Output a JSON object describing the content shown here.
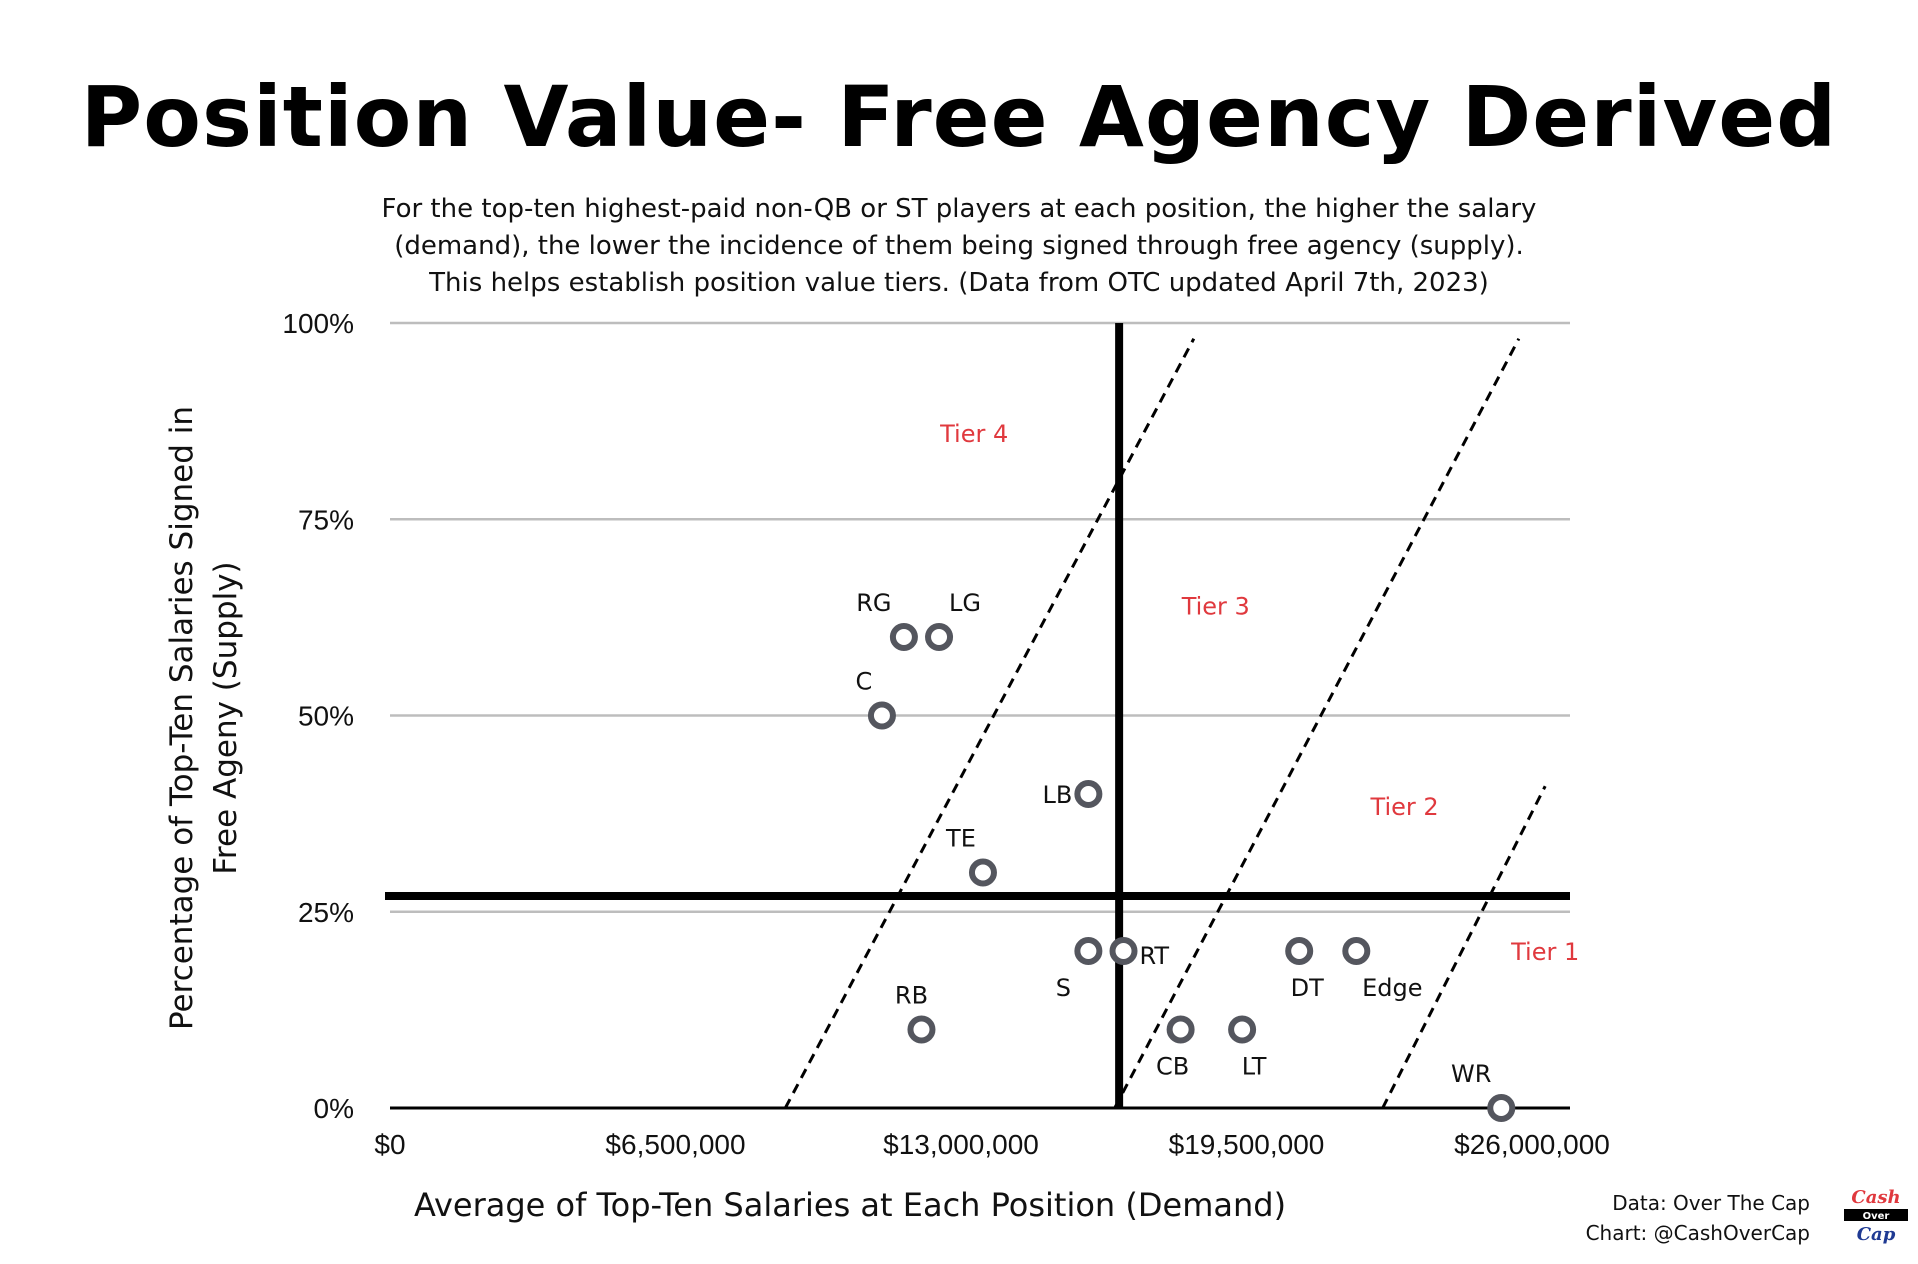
{
  "chart_data": {
    "type": "scatter",
    "title": "Position Value- Free Agency Derived",
    "subtitle_lines": [
      "For the top-ten highest-paid non-QB or ST players at each position, the higher the salary",
      "(demand), the lower the incidence of them being signed through free agency (supply).",
      "This helps establish position value tiers. (Data from OTC updated April 7th, 2023)"
    ],
    "xlabel": "Average of Top-Ten Salaries at Each Position (Demand)",
    "ylabel_lines": [
      "Percentage of Top-Ten  Salaries Signed in",
      "Free Ageny (Supply)"
    ],
    "xlim": [
      0,
      26000000
    ],
    "ylim": [
      0,
      100
    ],
    "x_ticks": [
      {
        "value": 0,
        "label": "$0"
      },
      {
        "value": 6500000,
        "label": "$6,500,000"
      },
      {
        "value": 13000000,
        "label": "$13,000,000"
      },
      {
        "value": 19500000,
        "label": "$19,500,000"
      },
      {
        "value": 26000000,
        "label": "$26,000,000"
      }
    ],
    "y_ticks": [
      {
        "value": 0,
        "label": "0%"
      },
      {
        "value": 25,
        "label": "25%"
      },
      {
        "value": 50,
        "label": "50%"
      },
      {
        "value": 75,
        "label": "75%"
      },
      {
        "value": 100,
        "label": "100%"
      }
    ],
    "grid": "horizontal",
    "points": [
      {
        "label": "RG",
        "x": 11700000,
        "y": 60,
        "label_pos": "top-left"
      },
      {
        "label": "LG",
        "x": 12500000,
        "y": 60,
        "label_pos": "top-right"
      },
      {
        "label": "C",
        "x": 11200000,
        "y": 50,
        "label_pos": "top-left"
      },
      {
        "label": "LB",
        "x": 15900000,
        "y": 40,
        "label_pos": "left"
      },
      {
        "label": "TE",
        "x": 13500000,
        "y": 30,
        "label_pos": "top-left"
      },
      {
        "label": "RB",
        "x": 12100000,
        "y": 10,
        "label_pos": "top-left"
      },
      {
        "label": "S",
        "x": 15900000,
        "y": 20,
        "label_pos": "bottom-left"
      },
      {
        "label": "RT",
        "x": 16700000,
        "y": 20,
        "label_pos": "right"
      },
      {
        "label": "CB",
        "x": 18000000,
        "y": 10,
        "label_pos": "bottom-left"
      },
      {
        "label": "LT",
        "x": 19400000,
        "y": 10,
        "label_pos": "bottom-right"
      },
      {
        "label": "DT",
        "x": 20700000,
        "y": 20,
        "label_pos": "bottom"
      },
      {
        "label": "Edge",
        "x": 22000000,
        "y": 20,
        "label_pos": "bottom-right"
      },
      {
        "label": "WR",
        "x": 25300000,
        "y": 0,
        "label_pos": "top-left"
      }
    ],
    "reference_lines": {
      "vertical_x": 16600000,
      "horizontal_y": 27
    },
    "tier_boundaries": [
      {
        "x1": 9000000,
        "y1": 0,
        "x2": 18300000,
        "y2": 98
      },
      {
        "x1": 16500000,
        "y1": 0,
        "x2": 25700000,
        "y2": 98
      },
      {
        "x1": 22600000,
        "y1": 0,
        "x2": 26300000,
        "y2": 41
      }
    ],
    "tier_labels": [
      {
        "text": "Tier 4",
        "x": 13300000,
        "y": 86
      },
      {
        "text": "Tier 3",
        "x": 18800000,
        "y": 64
      },
      {
        "text": "Tier 2",
        "x": 23100000,
        "y": 38.5
      },
      {
        "text": "Tier 1",
        "x": 26300000,
        "y": 20
      }
    ],
    "colors": {
      "marker": "#54565e",
      "tier_label": "#e0393e",
      "grid": "#bdbdbd",
      "axis": "#000000"
    }
  },
  "credits": {
    "data_line": "Data: Over The Cap",
    "chart_line": "Chart: @CashOverCap"
  },
  "logo": {
    "top": "Cash",
    "middle": "Over",
    "bottom": "Cap"
  }
}
